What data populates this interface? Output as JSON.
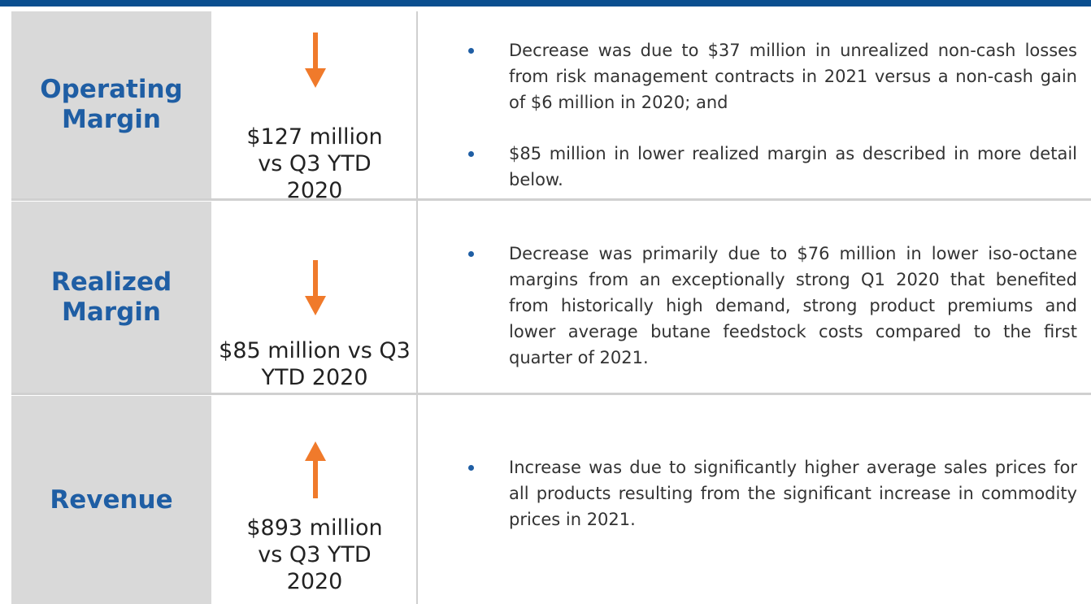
{
  "rows": [
    {
      "label": "Operating Margin",
      "amount": "$127 million vs Q3 YTD 2020",
      "bullets": [
        "Decrease was due to $37 million in unrealized non-cash losses from risk management contracts in 2021 versus a non-cash gain of $6 million in 2020; and",
        "$85 million in lower realized margin as described in more detail below."
      ]
    },
    {
      "label": "Realized Margin",
      "amount": "$85 million vs Q3 YTD 2020",
      "bullets": [
        "Decrease was primarily due to $76 million in lower iso-octane margins from an exceptionally strong Q1 2020 that benefited from historically high demand, strong product premiums and lower average butane feedstock costs compared to the first quarter of 2021."
      ]
    },
    {
      "label": "Revenue",
      "amount": "$893 million vs Q3 YTD 2020",
      "bullets": [
        "Increase was due to significantly higher average sales prices for all products resulting from the significant increase in commodity prices in 2021."
      ]
    }
  ]
}
